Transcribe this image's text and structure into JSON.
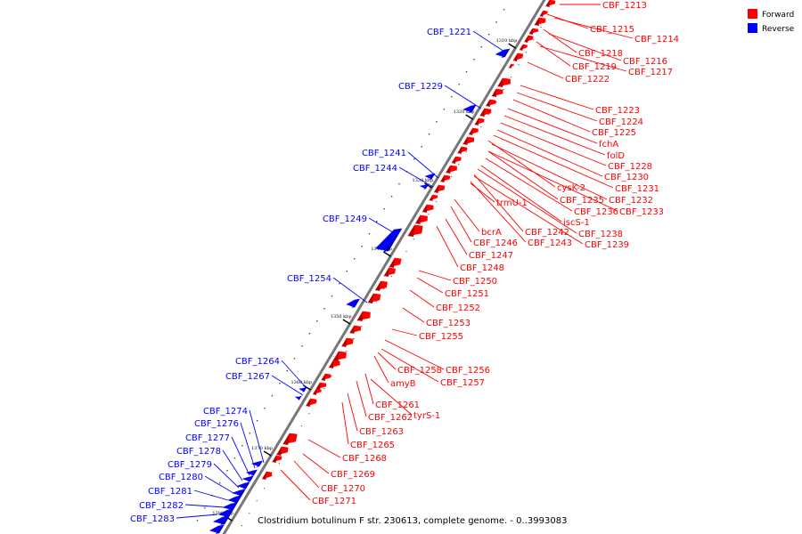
{
  "caption": "Clostridium botulinum F str. 230613, complete genome. - 0..3993083",
  "legend": [
    {
      "label": "Forward",
      "color": "#ff0000"
    },
    {
      "label": "Reverse",
      "color": "#0000ff"
    }
  ],
  "colors": {
    "forward": "#ff0000",
    "reverse": "#0000ff",
    "backbone": "#888888"
  },
  "ticks": [
    "1310 kbp",
    "1320 kbp",
    "1330 kbp",
    "1340 kbp",
    "1350 kbp",
    "1360 kbp",
    "1370 kbp",
    "1380 kbp"
  ],
  "forward_labels": [
    "CBF_1213",
    "CBF_1215",
    "CBF_1214",
    "CBF_1218",
    "CBF_1216",
    "CBF_1219",
    "CBF_1217",
    "CBF_1222",
    "CBF_1223",
    "CBF_1224",
    "CBF_1225",
    "fchA",
    "folD",
    "CBF_1228",
    "CBF_1230",
    "cysK-2",
    "CBF_1231",
    "CBF_1235",
    "CBF_1232",
    "trmU-1",
    "CBF_1236",
    "CBF_1233",
    "iscS-1",
    "bcrA",
    "CBF_1242",
    "CBF_1238",
    "CBF_1246",
    "CBF_1243",
    "CBF_1239",
    "CBF_1247",
    "CBF_1248",
    "CBF_1250",
    "CBF_1251",
    "CBF_1252",
    "CBF_1253",
    "CBF_1255",
    "CBF_1258",
    "CBF_1256",
    "amyB",
    "CBF_1257",
    "CBF_1261",
    "CBF_1262",
    "tyrS-1",
    "CBF_1263",
    "CBF_1265",
    "CBF_1268",
    "CBF_1269",
    "CBF_1270",
    "CBF_1271"
  ],
  "reverse_labels": [
    "CBF_1221",
    "CBF_1229",
    "CBF_1241",
    "CBF_1244",
    "CBF_1249",
    "CBF_1254",
    "CBF_1264",
    "CBF_1267",
    "CBF_1274",
    "CBF_1276",
    "CBF_1277",
    "CBF_1278",
    "CBF_1279",
    "CBF_1280",
    "CBF_1281",
    "CBF_1282",
    "CBF_1283"
  ]
}
